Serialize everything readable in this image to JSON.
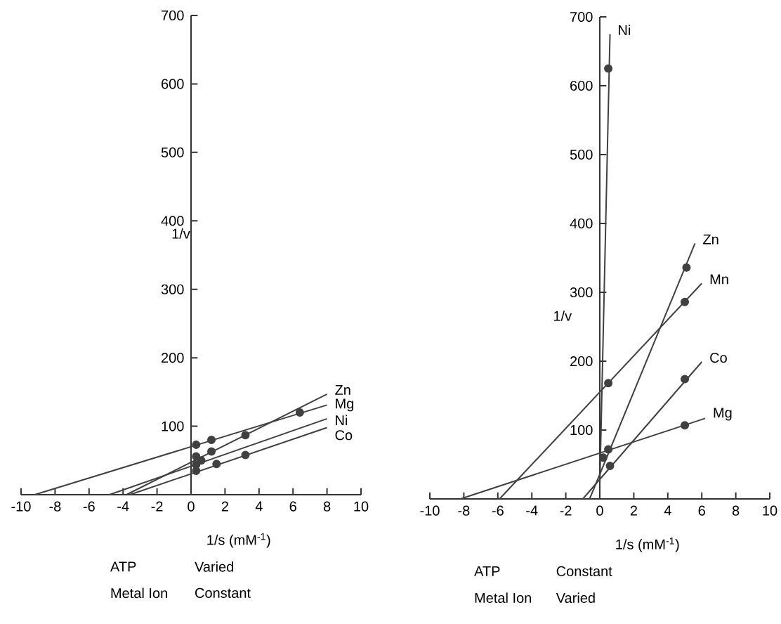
{
  "chart_data": [
    {
      "type": "line",
      "xlabel": "1/s (mM$^{-1}$)",
      "ylabel": "1/v",
      "annotations": [
        "ATP",
        "Varied",
        "Metal Ion",
        "Constant"
      ],
      "xlim": [
        -10,
        10
      ],
      "ylim": [
        0,
        700
      ],
      "xticks": [
        -10,
        -8,
        -6,
        -4,
        -2,
        0,
        2,
        4,
        6,
        8,
        10
      ],
      "yticks": [
        100,
        200,
        300,
        400,
        500,
        600,
        700
      ],
      "series": [
        {
          "name": "Zn",
          "color": "#404040",
          "x": [
            -3.8,
            8
          ],
          "values": [
            0,
            147
          ],
          "marker": "none"
        },
        {
          "name": "Mg",
          "color": "#404040",
          "x": [
            -9.2,
            8
          ],
          "values": [
            0,
            131
          ],
          "marker": "none"
        },
        {
          "name": "Ni",
          "color": "#404040",
          "x": [
            -4.8,
            8
          ],
          "values": [
            0,
            111
          ],
          "marker": "none"
        },
        {
          "name": "Co",
          "color": "#404040",
          "x": [
            -3.6,
            8
          ],
          "values": [
            0,
            98
          ],
          "marker": "none"
        },
        {
          "type": "scatter",
          "color": "#404040",
          "x": [
            0.3,
            1.2,
            3.2
          ],
          "values": [
            56,
            63,
            87
          ],
          "marker": "circle"
        },
        {
          "type": "scatter",
          "color": "#404040",
          "x": [
            0.3,
            1.2,
            6.4
          ],
          "values": [
            73,
            80,
            120
          ],
          "marker": "circle"
        },
        {
          "type": "scatter",
          "color": "#404040",
          "x": [
            0.3,
            0.6
          ],
          "values": [
            44,
            50
          ],
          "marker": "circle"
        },
        {
          "type": "scatter",
          "color": "#404040",
          "x": [
            0.3,
            1.5,
            3.2
          ],
          "values": [
            35,
            45,
            58
          ],
          "marker": "circle"
        }
      ]
    },
    {
      "type": "line",
      "xlabel": "1/s (mM$^{-1}$)",
      "ylabel": "1/v",
      "annotations": [
        "ATP",
        "Constant",
        "Metal Ion",
        "Varied"
      ],
      "xlim": [
        -10,
        10
      ],
      "ylim": [
        0,
        700
      ],
      "xticks": [
        -10,
        -8,
        -6,
        -4,
        -2,
        0,
        2,
        4,
        6,
        8,
        10
      ],
      "yticks": [
        100,
        200,
        300,
        400,
        500,
        600,
        700
      ],
      "series": [
        {
          "name": "Ni",
          "color": "#404040",
          "x": [
            0.0,
            0.6
          ],
          "values": [
            20,
            675
          ],
          "marker": "none"
        },
        {
          "name": "Zn",
          "color": "#404040",
          "x": [
            -0.6,
            5.6
          ],
          "values": [
            0,
            371
          ],
          "marker": "none"
        },
        {
          "name": "Mn",
          "color": "#404040",
          "x": [
            -5.9,
            6.0
          ],
          "values": [
            0,
            313
          ],
          "marker": "none"
        },
        {
          "name": "Co",
          "color": "#404040",
          "x": [
            -1.0,
            6.0
          ],
          "values": [
            0,
            199
          ],
          "marker": "none"
        },
        {
          "name": "Mg",
          "color": "#404040",
          "x": [
            -8.2,
            6.2
          ],
          "values": [
            0,
            117
          ],
          "marker": "none"
        },
        {
          "type": "scatter",
          "color": "#404040",
          "x": [
            0.5
          ],
          "values": [
            625
          ],
          "marker": "circle"
        },
        {
          "type": "scatter",
          "color": "#404040",
          "x": [
            0.2,
            5.1
          ],
          "values": [
            60,
            336
          ],
          "marker": "circle"
        },
        {
          "type": "scatter",
          "color": "#404040",
          "x": [
            0.5,
            5.0
          ],
          "values": [
            168,
            286
          ],
          "marker": "circle"
        },
        {
          "type": "scatter",
          "color": "#404040",
          "x": [
            0.6,
            5.0
          ],
          "values": [
            48,
            174
          ],
          "marker": "circle"
        },
        {
          "type": "scatter",
          "color": "#404040",
          "x": [
            0.5,
            5.0
          ],
          "values": [
            72,
            107
          ],
          "marker": "circle"
        }
      ]
    }
  ]
}
